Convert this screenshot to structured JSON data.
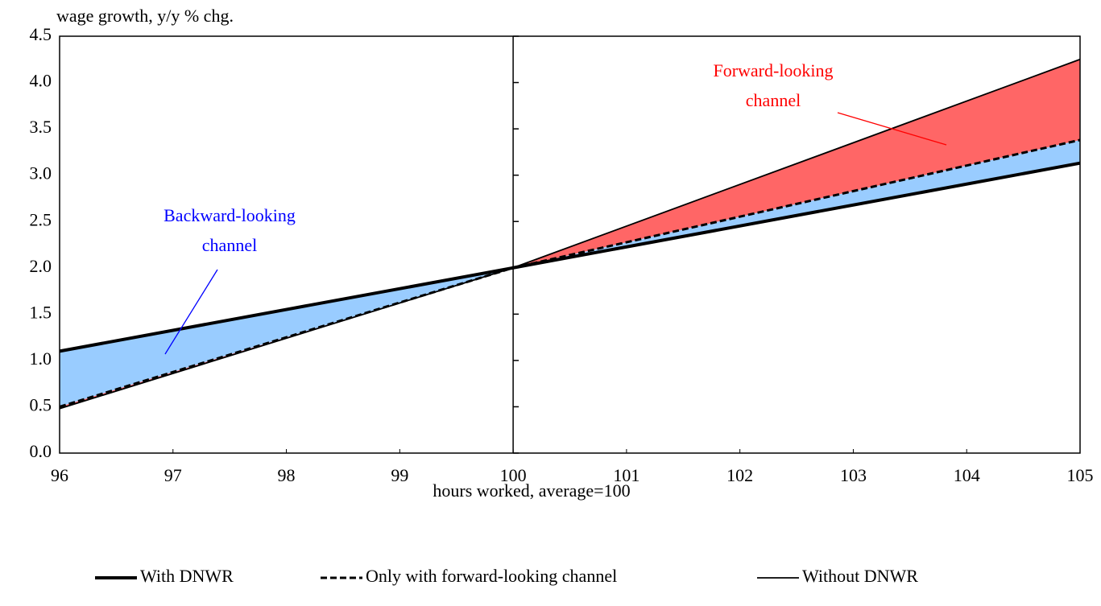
{
  "chart_data": {
    "type": "line",
    "y_label": "wage growth, y/y % chg.",
    "x_label": "hours worked, average=100",
    "x": [
      96,
      100,
      105
    ],
    "series": [
      {
        "name": "With DNWR",
        "color": "#000000",
        "style": "thick",
        "values": [
          1.1,
          2.0,
          3.13
        ]
      },
      {
        "name": "Only with forward-looking channel",
        "color": "#000000",
        "style": "dashed",
        "values": [
          0.5,
          2.0,
          3.38
        ]
      },
      {
        "name": "Without DNWR",
        "color": "#000000",
        "style": "thin",
        "values": [
          0.48,
          2.0,
          4.25
        ]
      }
    ],
    "fills": [
      {
        "between": [
          0,
          1
        ],
        "color": "#99ccff"
      },
      {
        "between": [
          1,
          2
        ],
        "color": "#ff6666"
      }
    ],
    "annotations": [
      {
        "lines": [
          "Forward-looking",
          "channel"
        ],
        "color": "#ff0000"
      },
      {
        "lines": [
          "Backward-looking",
          "channel"
        ],
        "color": "#0000ff"
      }
    ],
    "xlim": [
      96,
      105
    ],
    "xticks": [
      96,
      97,
      98,
      99,
      100,
      101,
      102,
      103,
      104,
      105
    ],
    "ylim": [
      0,
      4.5
    ],
    "yticks": [
      {
        "value": 0,
        "label": "0.0"
      },
      0.5,
      {
        "value": 1,
        "label": "1.0"
      },
      1.5,
      {
        "value": 2,
        "label": "2.0"
      },
      2.5,
      {
        "value": 3,
        "label": "3.0"
      },
      3.5,
      {
        "value": 4,
        "label": "4.0"
      },
      4.5
    ],
    "axis_cross_x": 100,
    "legend": "bottom"
  }
}
